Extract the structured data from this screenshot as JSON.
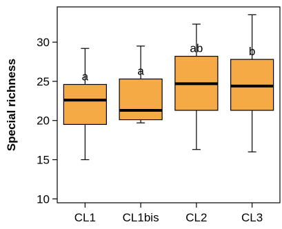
{
  "chart_data": {
    "type": "box",
    "title": "",
    "xlabel": "",
    "ylabel": "Special richness",
    "ylim": [
      9.5,
      34.5
    ],
    "y_ticks": [
      10,
      15,
      20,
      25,
      30
    ],
    "categories": [
      "CL1",
      "CL1bis",
      "CL2",
      "CL3"
    ],
    "boxes": [
      {
        "category": "CL1",
        "whisker_low": 15.0,
        "q1": 19.5,
        "median": 22.6,
        "q3": 24.6,
        "whisker_high": 29.2,
        "label": "a"
      },
      {
        "category": "CL1bis",
        "whisker_low": 19.7,
        "q1": 20.1,
        "median": 21.3,
        "q3": 25.3,
        "whisker_high": 29.5,
        "label": "a"
      },
      {
        "category": "CL2",
        "whisker_low": 16.3,
        "q1": 21.3,
        "median": 24.7,
        "q3": 28.2,
        "whisker_high": 32.3,
        "label": "ab"
      },
      {
        "category": "CL3",
        "whisker_low": 16.0,
        "q1": 21.3,
        "median": 24.4,
        "q3": 27.8,
        "whisker_high": 33.5,
        "label": "b"
      }
    ],
    "box_color": "#F5AA45",
    "line_color": "#000000",
    "grid": false,
    "legend": "none"
  }
}
